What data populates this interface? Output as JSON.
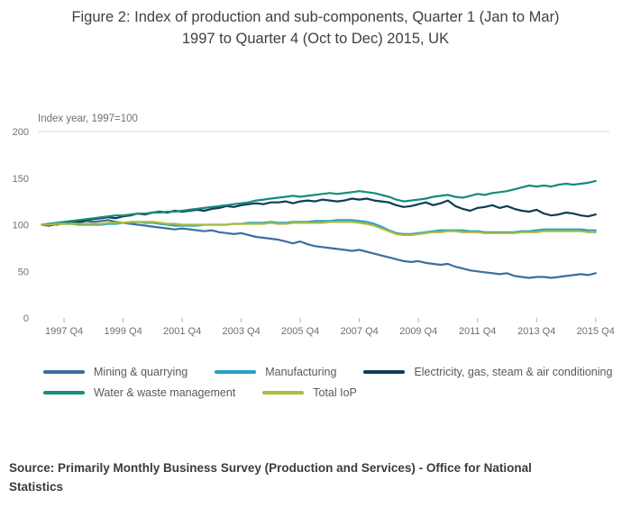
{
  "title": {
    "line1": "Figure 2: Index of production and sub-components, Quarter 1 (Jan to Mar)",
    "line2": "1997 to Quarter 4 (Oct to Dec) 2015, UK"
  },
  "source": "Source: Primarily Monthly Business Survey (Production and Services) - Office for National Statistics",
  "chart_data": {
    "type": "line",
    "title": "Figure 2: Index of production and sub-components, Quarter 1 (Jan to Mar) 1997 to Quarter 4 (Oct to Dec) 2015, UK",
    "unit_label": "Index year, 1997=100",
    "x_start": "1997 Q1",
    "x_end": "2015 Q4",
    "x_frequency": "quarterly",
    "x_tick_labels": [
      "1997 Q4",
      "1999 Q4",
      "2001 Q4",
      "2003 Q4",
      "2005 Q4",
      "2007 Q4",
      "2009 Q4",
      "2011 Q4",
      "2013 Q4",
      "2015 Q4"
    ],
    "x_tick_indices": [
      3,
      11,
      19,
      27,
      35,
      43,
      51,
      59,
      67,
      75
    ],
    "y_ticks": [
      0,
      50,
      100,
      150,
      200
    ],
    "ylim": [
      0,
      200
    ],
    "grid": "top-border-only",
    "legend_position": "below",
    "series": [
      {
        "name": "Mining & quarrying",
        "color": "#3e6e9e",
        "values": [
          100,
          101,
          100,
          102,
          103,
          102,
          104,
          103,
          104,
          105,
          103,
          102,
          101,
          100,
          99,
          98,
          97,
          96,
          95,
          96,
          95,
          94,
          93,
          94,
          92,
          91,
          90,
          91,
          89,
          87,
          86,
          85,
          84,
          82,
          80,
          82,
          79,
          77,
          76,
          75,
          74,
          73,
          72,
          73,
          71,
          69,
          67,
          65,
          63,
          61,
          60,
          61,
          59,
          58,
          57,
          58,
          55,
          53,
          51,
          50,
          49,
          48,
          47,
          48,
          45,
          44,
          43,
          44,
          44,
          43,
          44,
          45,
          46,
          47,
          46,
          48
        ]
      },
      {
        "name": "Manufacturing",
        "color": "#27a0cc",
        "values": [
          100,
          100,
          101,
          101,
          101,
          100,
          100,
          100,
          100,
          101,
          101,
          102,
          102,
          103,
          102,
          102,
          101,
          100,
          99,
          99,
          99,
          99,
          100,
          100,
          100,
          100,
          101,
          101,
          102,
          102,
          102,
          103,
          102,
          102,
          103,
          103,
          103,
          104,
          104,
          104,
          105,
          105,
          105,
          104,
          103,
          101,
          98,
          94,
          91,
          90,
          90,
          91,
          92,
          93,
          94,
          94,
          94,
          94,
          93,
          93,
          92,
          92,
          92,
          92,
          92,
          93,
          93,
          94,
          95,
          95,
          95,
          95,
          95,
          95,
          94,
          94
        ]
      },
      {
        "name": "Electricity, gas, steam & air conditioning",
        "color": "#0f3d57",
        "values": [
          100,
          99,
          101,
          102,
          104,
          103,
          105,
          106,
          107,
          108,
          107,
          109,
          110,
          112,
          111,
          113,
          114,
          113,
          115,
          114,
          115,
          116,
          115,
          117,
          118,
          120,
          119,
          121,
          122,
          123,
          122,
          124,
          124,
          125,
          123,
          125,
          126,
          125,
          127,
          126,
          125,
          126,
          128,
          127,
          128,
          126,
          125,
          124,
          121,
          119,
          120,
          122,
          124,
          121,
          123,
          126,
          120,
          117,
          115,
          118,
          119,
          121,
          118,
          120,
          117,
          115,
          114,
          116,
          112,
          110,
          111,
          113,
          112,
          110,
          109,
          111
        ]
      },
      {
        "name": "Water & waste management",
        "color": "#168c7c",
        "values": [
          100,
          101,
          102,
          103,
          104,
          105,
          106,
          107,
          108,
          109,
          110,
          110,
          111,
          112,
          112,
          113,
          113,
          114,
          114,
          115,
          116,
          117,
          118,
          119,
          120,
          121,
          122,
          123,
          124,
          126,
          127,
          128,
          129,
          130,
          131,
          130,
          131,
          132,
          133,
          134,
          133,
          134,
          135,
          136,
          135,
          134,
          132,
          130,
          127,
          125,
          126,
          127,
          128,
          130,
          131,
          132,
          130,
          129,
          131,
          133,
          132,
          134,
          135,
          136,
          138,
          140,
          142,
          141,
          142,
          141,
          143,
          144,
          143,
          144,
          145,
          147
        ]
      },
      {
        "name": "Total IoP",
        "color": "#a8bd3a",
        "values": [
          100,
          100,
          101,
          101,
          101,
          101,
          101,
          101,
          101,
          102,
          102,
          102,
          103,
          103,
          103,
          103,
          102,
          101,
          101,
          100,
          100,
          100,
          100,
          100,
          100,
          100,
          101,
          101,
          101,
          101,
          101,
          102,
          101,
          101,
          102,
          102,
          102,
          102,
          102,
          103,
          103,
          103,
          103,
          102,
          101,
          99,
          96,
          93,
          90,
          89,
          89,
          90,
          91,
          92,
          92,
          93,
          93,
          92,
          92,
          92,
          91,
          91,
          91,
          91,
          91,
          92,
          92,
          92,
          93,
          93,
          93,
          93,
          93,
          93,
          92,
          92
        ]
      }
    ]
  }
}
